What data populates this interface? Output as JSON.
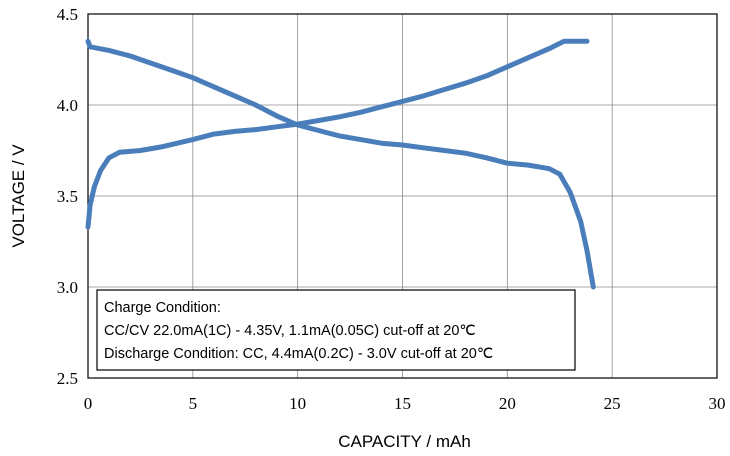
{
  "chart_data": {
    "type": "line",
    "xlabel": "CAPACITY / mAh",
    "ylabel": "VOLTAGE / V",
    "xlim": [
      0,
      30
    ],
    "ylim": [
      2.5,
      4.5
    ],
    "x_ticks": [
      "0",
      "5",
      "10",
      "15",
      "20",
      "25",
      "30"
    ],
    "y_ticks": [
      "2.5",
      "3.0",
      "3.5",
      "4.0",
      "4.5"
    ],
    "grid": true,
    "line_color": "#4a7ebb",
    "series": [
      {
        "points": [
          [
            0,
            3.33
          ],
          [
            0.1,
            3.45
          ],
          [
            0.3,
            3.55
          ],
          [
            0.6,
            3.64
          ],
          [
            1.0,
            3.71
          ],
          [
            1.5,
            3.74
          ],
          [
            2.5,
            3.75
          ],
          [
            3.5,
            3.77
          ],
          [
            5,
            3.81
          ],
          [
            6,
            3.84
          ],
          [
            7,
            3.855
          ],
          [
            8,
            3.865
          ],
          [
            9,
            3.88
          ],
          [
            10,
            3.895
          ],
          [
            11,
            3.915
          ],
          [
            12,
            3.935
          ],
          [
            13,
            3.96
          ],
          [
            14,
            3.99
          ],
          [
            15,
            4.02
          ],
          [
            16,
            4.05
          ],
          [
            17,
            4.085
          ],
          [
            18,
            4.12
          ],
          [
            19,
            4.16
          ],
          [
            20,
            4.21
          ],
          [
            21,
            4.26
          ],
          [
            22,
            4.31
          ],
          [
            22.7,
            4.35
          ],
          [
            23.8,
            4.35
          ]
        ]
      },
      {
        "points": [
          [
            0,
            4.35
          ],
          [
            0.1,
            4.32
          ],
          [
            1,
            4.3
          ],
          [
            2,
            4.27
          ],
          [
            3,
            4.23
          ],
          [
            4,
            4.19
          ],
          [
            5,
            4.15
          ],
          [
            6,
            4.1
          ],
          [
            7,
            4.05
          ],
          [
            8,
            4.0
          ],
          [
            9,
            3.94
          ],
          [
            10,
            3.89
          ],
          [
            11,
            3.86
          ],
          [
            12,
            3.83
          ],
          [
            13,
            3.81
          ],
          [
            14,
            3.79
          ],
          [
            15,
            3.78
          ],
          [
            16,
            3.765
          ],
          [
            17,
            3.75
          ],
          [
            18,
            3.735
          ],
          [
            19,
            3.71
          ],
          [
            20,
            3.68
          ],
          [
            21,
            3.67
          ],
          [
            22,
            3.65
          ],
          [
            22.5,
            3.62
          ],
          [
            23,
            3.52
          ],
          [
            23.5,
            3.36
          ],
          [
            23.8,
            3.2
          ],
          [
            24.1,
            3.0
          ]
        ]
      }
    ],
    "annotation": {
      "lines": [
        "Charge Condition:",
        "CC/CV 22.0mA(1C) - 4.35V, 1.1mA(0.05C) cut-off at  20℃",
        "Discharge Condition: CC, 4.4mA(0.2C) - 3.0V cut-off at 20℃"
      ]
    }
  }
}
